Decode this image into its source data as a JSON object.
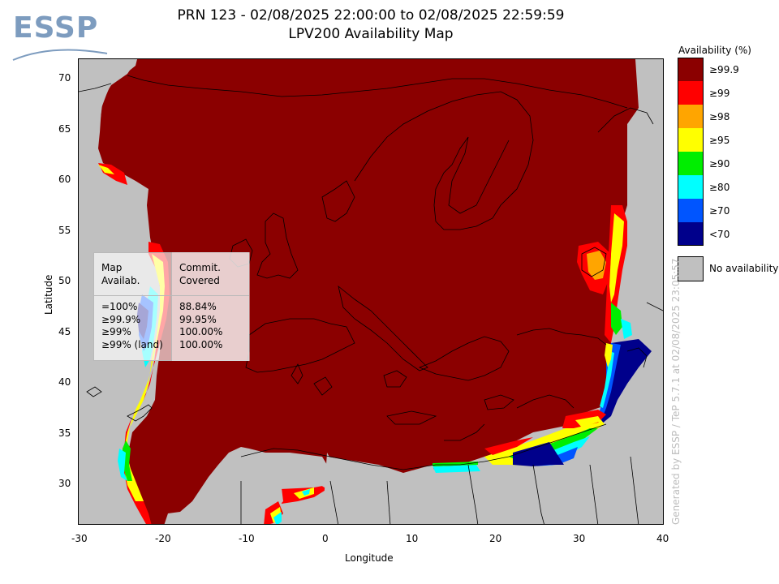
{
  "logo": {
    "text": "ESSP"
  },
  "title": {
    "line1": "PRN 123 - 02/08/2025 22:00:00 to 02/08/2025 22:59:59",
    "line2": "LPV200 Availability Map"
  },
  "axes": {
    "xlabel": "Longitude",
    "ylabel": "Latitude",
    "x_ticks": [
      "-30",
      "-20",
      "-10",
      "0",
      "10",
      "20",
      "30",
      "40"
    ],
    "y_ticks": [
      "70",
      "65",
      "60",
      "55",
      "50",
      "45",
      "40",
      "35",
      "30"
    ],
    "x_range": [
      -30,
      40
    ],
    "y_range": [
      26,
      72
    ]
  },
  "legend": {
    "title": "Availability (%)",
    "items": [
      {
        "label": "≥99.9",
        "color": "#8b0000"
      },
      {
        "label": "≥99",
        "color": "#ff0000"
      },
      {
        "label": "≥98",
        "color": "#ffa500"
      },
      {
        "label": "≥95",
        "color": "#ffff00"
      },
      {
        "label": "≥90",
        "color": "#00ee00"
      },
      {
        "label": "≥80",
        "color": "#00ffff"
      },
      {
        "label": "≥70",
        "color": "#0055ff"
      },
      {
        "label": "<70",
        "color": "#00008b"
      }
    ],
    "no_availability": {
      "label": "No availability",
      "color": "#c0c0c0"
    }
  },
  "stats_box": {
    "header_left": "Map\nAvailab.",
    "header_right": "Commit.\nCovered",
    "rows_left": "=100%\n≥99.9%\n≥99%\n≥99% (land)",
    "rows_right": "88.84%\n99.95%\n100.00%\n100.00%"
  },
  "footer": {
    "generated": "Generated by ESSP / TeP 5.7.1 at 02/08/2025 23:05:57"
  }
}
